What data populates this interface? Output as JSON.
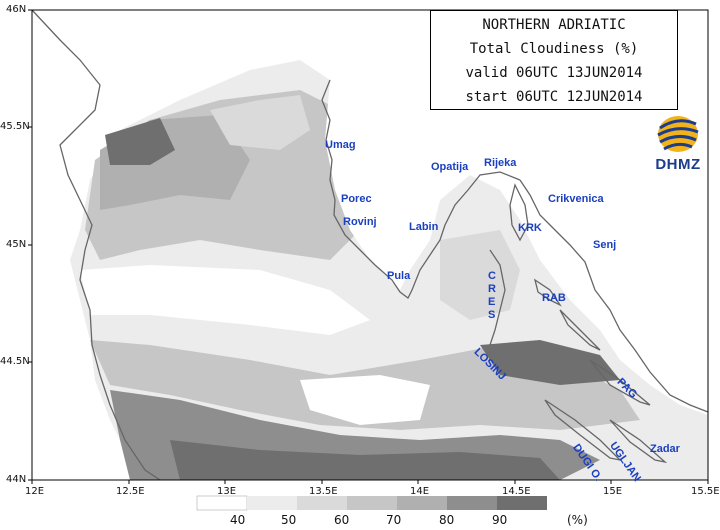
{
  "header": {
    "region": "NORTHERN ADRIATIC",
    "variable": "Total Cloudiness (%)",
    "valid": "valid 06UTC 13JUN2014",
    "start": "start 06UTC 12JUN2014"
  },
  "logo": {
    "text": "DHMZ"
  },
  "axes": {
    "lon_ticks": [
      "12E",
      "12.5E",
      "13E",
      "13.5E",
      "14E",
      "14.5E",
      "15E",
      "15.5E"
    ],
    "lat_ticks": [
      "44N",
      "44.5N",
      "45N",
      "45.5N",
      "46N"
    ]
  },
  "places": [
    "Umag",
    "Porec",
    "Rovinj",
    "Pula",
    "Labin",
    "Opatija",
    "Rijeka",
    "Crikvenica",
    "KRK",
    "Senj",
    "CRES",
    "RAB",
    "LOSINJ",
    "PAG",
    "UGLJAN",
    "DUGI O.",
    "Zadar"
  ],
  "legend": {
    "levels": [
      "40",
      "50",
      "60",
      "70",
      "80",
      "90"
    ],
    "unit": "(%)",
    "colors": [
      "#ffffff",
      "#ececec",
      "#dadada",
      "#c6c6c6",
      "#b0b0b0",
      "#8e8e8e",
      "#6f6f6f"
    ]
  },
  "colors": {
    "label_blue": "#1a3fbf",
    "logo_blue": "#1c3c8c",
    "coast": "#666666"
  }
}
